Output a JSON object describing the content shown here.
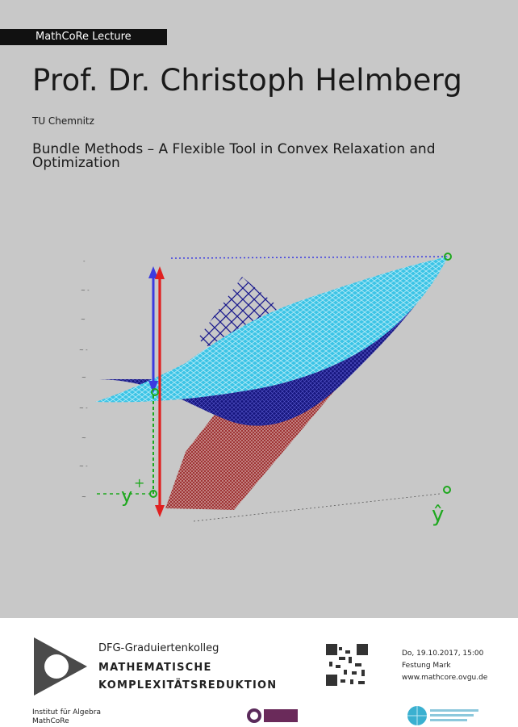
{
  "header": {
    "tag": "MathCoRe Lecture",
    "speaker": "Prof. Dr. Christoph Helmberg",
    "affiliation": "TU Chemnitz",
    "talk_title": "Bundle Methods – A Flexible Tool in Convex Relaxation and Optimization"
  },
  "figure": {
    "label_y_plus": "y",
    "label_y_hat": "ŷ",
    "colors": {
      "upper_mesh": "#35c8e8",
      "middle_mesh": "#1a1a8e",
      "lower_mesh": "#8b1a1a",
      "marker": "#1ea81e",
      "arrow_red": "#e02020",
      "arrow_blue": "#3b3be0"
    }
  },
  "footer": {
    "program_line1": "DFG-Graduiertenkolleg",
    "program_line2": "MATHEMATISCHE",
    "program_line3": "KOMPLEXITÄTSREDUKTION",
    "info_line1": "Do, 19.10.2017, 15:00",
    "info_line2": "Festung Mark",
    "info_line3": "www.mathcore.ovgu.de",
    "left_small1": "Institut für Algebra",
    "left_small2": "MathCoRe"
  }
}
